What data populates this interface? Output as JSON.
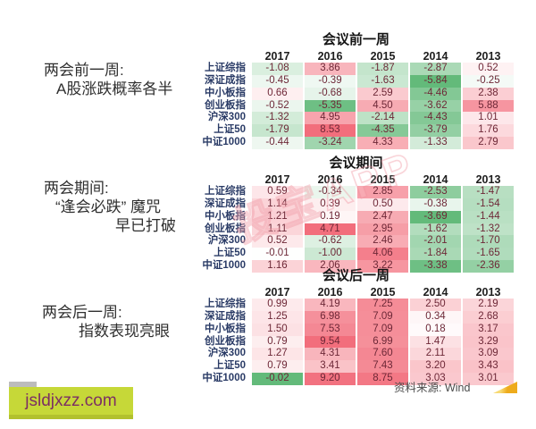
{
  "chart_data": {
    "type": "heatmap",
    "colorscale": {
      "positive_max": "#f26e7c",
      "negative_max": "#63ba7a",
      "midpoint": "#ffffff"
    },
    "tables": [
      {
        "title": "会议前一周",
        "annotation_lines": [
          "两会前一周:",
          "A股涨跌概率各半"
        ],
        "columns": [
          "2017",
          "2016",
          "2015",
          "2014",
          "2013"
        ],
        "row_labels": [
          "上证综指",
          "深证成指",
          "中小板指",
          "创业板指",
          "沪深300",
          "上证50",
          "中证1000"
        ],
        "values": [
          [
            "-1.08",
            "3.86",
            "-1.87",
            "-2.87",
            "0.52"
          ],
          [
            "-0.45",
            "-0.39",
            "-1.63",
            "-5.84",
            "-0.25"
          ],
          [
            "0.66",
            "-0.68",
            "2.59",
            "-4.46",
            "2.38"
          ],
          [
            "-0.52",
            "-5.35",
            "4.50",
            "-3.62",
            "5.88"
          ],
          [
            "-1.32",
            "4.95",
            "-2.14",
            "-4.43",
            "1.01"
          ],
          [
            "-1.79",
            "8.53",
            "-4.35",
            "-3.79",
            "1.76"
          ],
          [
            "-0.44",
            "-3.24",
            "4.33",
            "-1.33",
            "2.79"
          ]
        ]
      },
      {
        "title": "会议期间",
        "annotation_lines": [
          "两会期间:",
          "“逢会必跌” 魔咒",
          "早已打破"
        ],
        "columns": [
          "2017",
          "2016",
          "2015",
          "2014",
          "2013"
        ],
        "row_labels": [
          "上证综指",
          "深证成指",
          "中小板指",
          "创业板指",
          "沪深300",
          "上证50",
          "中证1000"
        ],
        "values": [
          [
            "0.59",
            "-0.34",
            "2.85",
            "-2.53",
            "-1.47"
          ],
          [
            "1.14",
            "0.39",
            "0.50",
            "-0.38",
            "-1.54"
          ],
          [
            "1.21",
            "0.19",
            "2.47",
            "-3.69",
            "-1.44"
          ],
          [
            "1.11",
            "4.71",
            "2.95",
            "-1.62",
            "-1.32"
          ],
          [
            "0.52",
            "-0.62",
            "2.46",
            "-2.01",
            "-1.70"
          ],
          [
            "-0.01",
            "-1.00",
            "4.06",
            "-1.84",
            "-1.65"
          ],
          [
            "1.16",
            "2.06",
            "3.22",
            "-3.38",
            "-2.36"
          ]
        ]
      },
      {
        "title": "会议后一周",
        "annotation_lines": [
          "两会后一周:",
          "指数表现亮眼"
        ],
        "columns": [
          "2017",
          "2016",
          "2015",
          "2014",
          "2013"
        ],
        "row_labels": [
          "上证综指",
          "深证成指",
          "中小板指",
          "创业板指",
          "沪深300",
          "上证50",
          "中证1000"
        ],
        "values": [
          [
            "0.99",
            "4.19",
            "7.25",
            "2.50",
            "2.19"
          ],
          [
            "1.25",
            "6.98",
            "7.09",
            "0.34",
            "2.68"
          ],
          [
            "1.50",
            "7.53",
            "7.09",
            "0.18",
            "3.17"
          ],
          [
            "0.79",
            "9.54",
            "6.99",
            "1.47",
            "3.29"
          ],
          [
            "1.27",
            "4.31",
            "7.60",
            "2.11",
            "3.09"
          ],
          [
            "0.79",
            "3.41",
            "7.43",
            "3.20",
            "3.43"
          ],
          [
            "-0.02",
            "9.20",
            "8.75",
            "3.03",
            "3.01"
          ]
        ]
      }
    ]
  },
  "watermark": {
    "text": "投宝APP"
  },
  "footer": {
    "source_label": "资料来源: Wind"
  },
  "badge": {
    "text": "jsldjxzz.com"
  },
  "colors": {
    "value_text": "#6d2837",
    "row_label_text": "#2a3b66",
    "header_text": "#1d1d1d",
    "accent_yellow": "#eeab1c",
    "badge_background": "#c6d838",
    "badge_text": "#7c2f63"
  }
}
